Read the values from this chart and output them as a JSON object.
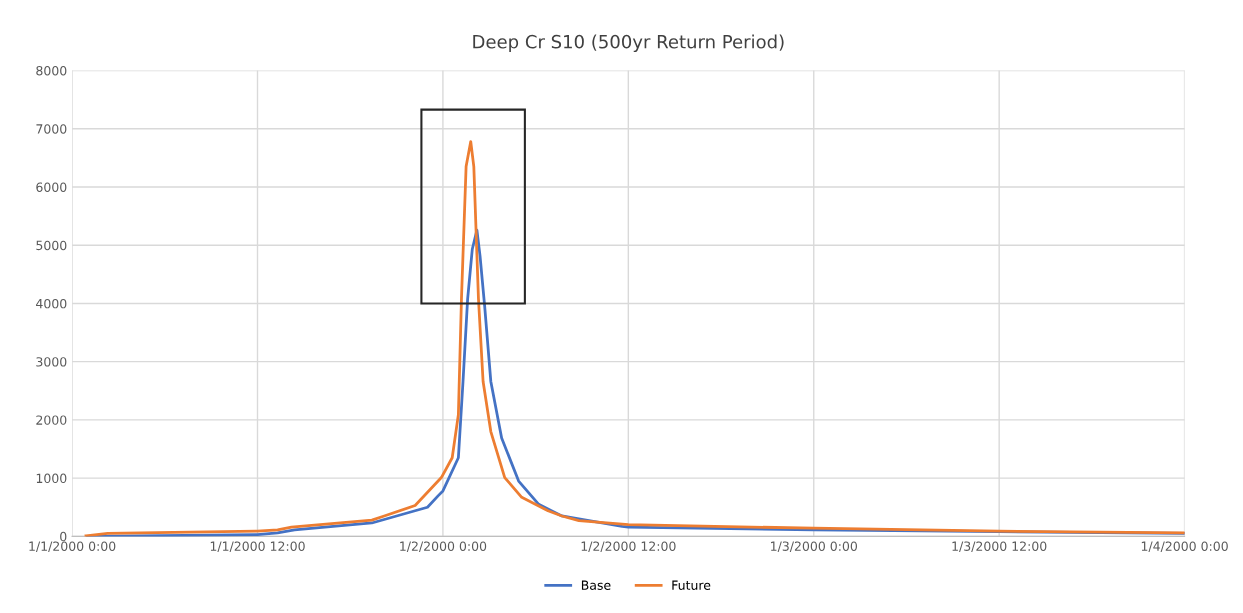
{
  "chart_data": {
    "type": "line",
    "title": "Deep Cr S10 (500yr Return Period)",
    "xlim": [
      "2000-01-01T00:00",
      "2000-01-04T00:00"
    ],
    "xticks": [
      {
        "value": "2000-01-01T00:00",
        "label": "1/1/2000 0:00"
      },
      {
        "value": "2000-01-01T12:00",
        "label": "1/1/2000 12:00"
      },
      {
        "value": "2000-01-02T00:00",
        "label": "1/2/2000 0:00"
      },
      {
        "value": "2000-01-02T12:00",
        "label": "1/2/2000 12:00"
      },
      {
        "value": "2000-01-03T00:00",
        "label": "1/3/2000 0:00"
      },
      {
        "value": "2000-01-03T12:00",
        "label": "1/3/2000 12:00"
      },
      {
        "value": "2000-01-04T00:00",
        "label": "1/4/2000 0:00"
      }
    ],
    "ylim": [
      0,
      8000
    ],
    "yticks": [
      0,
      1000,
      2000,
      3000,
      4000,
      5000,
      6000,
      7000,
      8000
    ],
    "grid": true,
    "legend": "bottom",
    "marker": "none",
    "line_style": "solid",
    "series": [
      {
        "name": "Base",
        "color": "#4472c4",
        "x": [
          "2000-01-01T01:00",
          "2000-01-01T12:00",
          "2000-01-01T13:18",
          "2000-01-01T14:24",
          "2000-01-01T19:24",
          "2000-01-01T22:12",
          "2000-01-01T23:00",
          "2000-01-01T23:42",
          "2000-01-02T00:00",
          "2000-01-02T01:00",
          "2000-01-02T01:18",
          "2000-01-02T01:36",
          "2000-01-02T01:54",
          "2000-01-02T02:12",
          "2000-01-02T02:24",
          "2000-01-02T02:42",
          "2000-01-02T03:06",
          "2000-01-02T03:48",
          "2000-01-02T04:54",
          "2000-01-02T06:12",
          "2000-01-02T07:42",
          "2000-01-02T08:48",
          "2000-01-02T11:36",
          "2000-01-02T12:00",
          "2000-01-03T00:00",
          "2000-01-03T12:00",
          "2000-01-04T00:00"
        ],
        "values": [
          0,
          30,
          60,
          110,
          230,
          440,
          500,
          700,
          780,
          1350,
          2660,
          4080,
          4930,
          5260,
          4820,
          3960,
          2660,
          1690,
          950,
          550,
          350,
          300,
          170,
          160,
          110,
          80,
          50
        ]
      },
      {
        "name": "Future",
        "color": "#ed7d31",
        "x": [
          "2000-01-01T00:54",
          "2000-01-01T02:18",
          "2000-01-01T12:00",
          "2000-01-01T13:18",
          "2000-01-01T14:12",
          "2000-01-01T19:24",
          "2000-01-01T20:12",
          "2000-01-01T22:12",
          "2000-01-01T23:54",
          "2000-01-02T00:36",
          "2000-01-02T01:00",
          "2000-01-02T01:12",
          "2000-01-02T01:30",
          "2000-01-02T01:48",
          "2000-01-02T02:00",
          "2000-01-02T02:18",
          "2000-01-02T02:36",
          "2000-01-02T03:06",
          "2000-01-02T04:00",
          "2000-01-02T05:06",
          "2000-01-02T06:48",
          "2000-01-02T07:42",
          "2000-01-02T08:48",
          "2000-01-02T11:36",
          "2000-01-02T12:00",
          "2000-01-03T00:00",
          "2000-01-03T12:00",
          "2000-01-04T00:00"
        ],
        "values": [
          10,
          50,
          90,
          110,
          160,
          280,
          350,
          530,
          1010,
          1350,
          2090,
          4080,
          6350,
          6780,
          6350,
          4080,
          2660,
          1800,
          1010,
          670,
          440,
          350,
          270,
          210,
          200,
          140,
          90,
          60
        ]
      }
    ]
  }
}
